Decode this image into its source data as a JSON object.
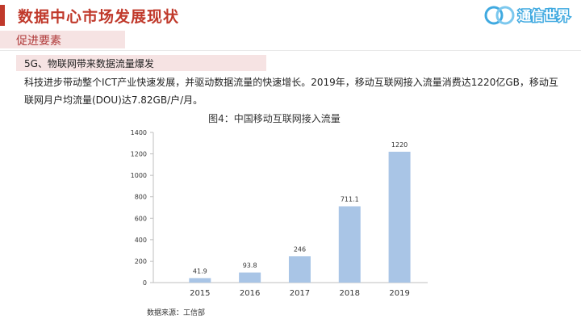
{
  "header": {
    "title": "数据中心市场发展现状",
    "logo_text": "通信世界"
  },
  "section": {
    "title": "促进要素"
  },
  "highlight": {
    "text": "5G、物联网带来数据流量爆发"
  },
  "body": {
    "text": "科技进步带动整个ICT产业快速发展，并驱动数据流量的快速增长。2019年，移动互联网接入流量消费达1220亿GB，移动互联网月户均流量(DOU)达7.82GB/户/月。"
  },
  "chart_data": {
    "type": "bar",
    "title": "图4：中国移动互联网接入流量",
    "categories": [
      "2015",
      "2016",
      "2017",
      "2018",
      "2019"
    ],
    "values": [
      41.9,
      93.8,
      246,
      711.1,
      1220
    ],
    "value_labels": [
      "41.9",
      "93.8",
      "246",
      "711.1",
      "1220"
    ],
    "yticks": [
      0,
      200,
      400,
      600,
      800,
      1000,
      1200,
      1400
    ],
    "ylim": [
      0,
      1400
    ],
    "xlabel": "",
    "ylabel": "",
    "grid": false,
    "bar_color": "#a9c5e6"
  },
  "source": {
    "text": "数据来源：工信部"
  },
  "colors": {
    "accent": "#c0392b",
    "highlight_bg": "#f6e3e3",
    "logo_blue": "#3fa9e0"
  }
}
